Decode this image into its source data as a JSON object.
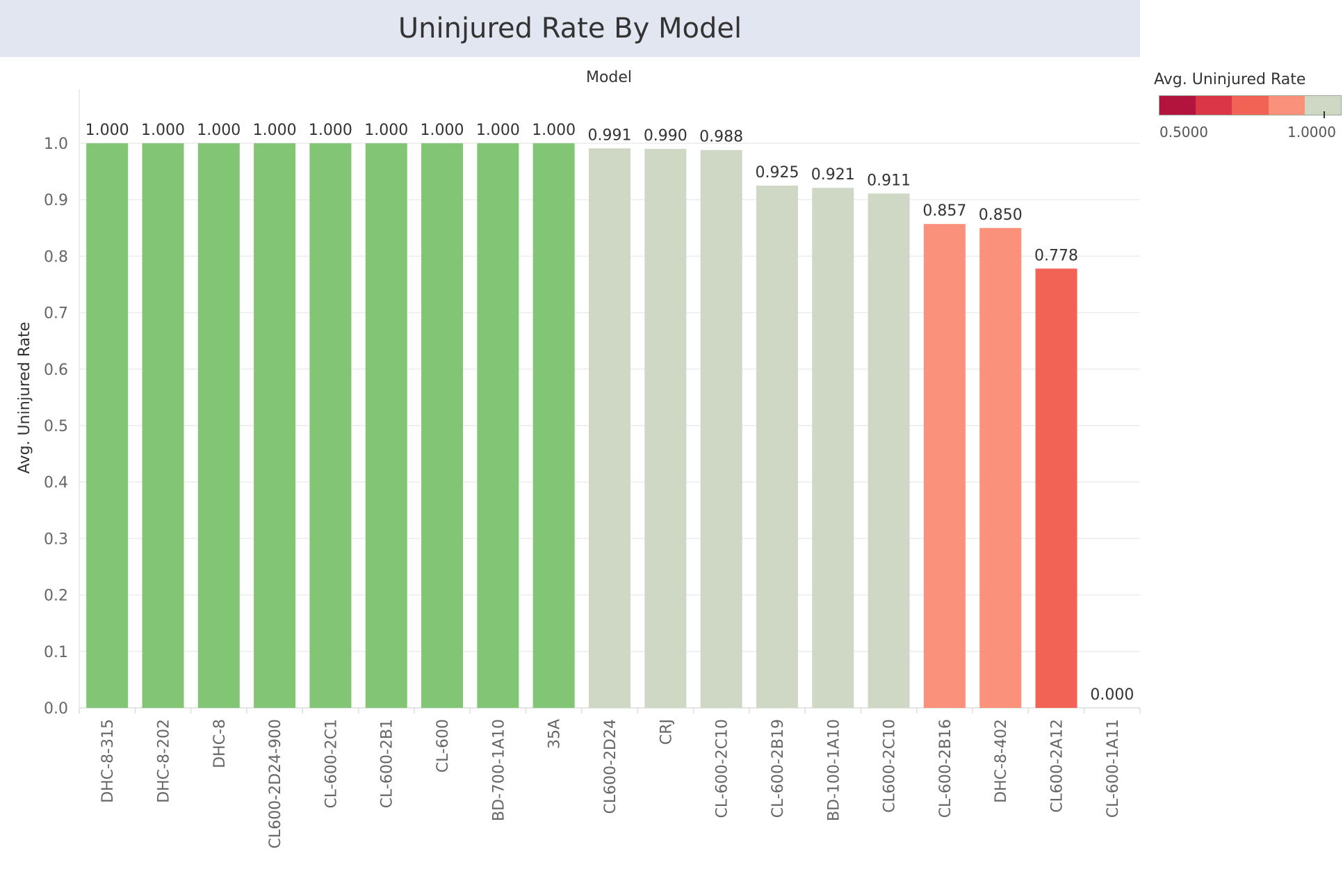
{
  "chart_data": {
    "type": "bar",
    "title": "Uninjured Rate By Model",
    "column_header": "Model",
    "ylabel": "Avg. Uninjured Rate",
    "ylim": [
      0,
      1.0
    ],
    "yticks": [
      "0.0",
      "0.1",
      "0.2",
      "0.3",
      "0.4",
      "0.5",
      "0.6",
      "0.7",
      "0.8",
      "0.9",
      "1.0"
    ],
    "categories": [
      "DHC-8-315",
      "DHC-8-202",
      "DHC-8",
      "CL600-2D24-900",
      "CL-600-2C1",
      "CL-600-2B1",
      "CL-600",
      "BD-700-1A10",
      "35A",
      "CL600-2D24",
      "CRJ",
      "CL-600-2C10",
      "CL-600-2B19",
      "BD-100-1A10",
      "CL600-2C10",
      "CL-600-2B16",
      "DHC-8-402",
      "CL600-2A12",
      "CL-600-1A11"
    ],
    "values": [
      1.0,
      1.0,
      1.0,
      1.0,
      1.0,
      1.0,
      1.0,
      1.0,
      1.0,
      0.991,
      0.99,
      0.988,
      0.925,
      0.921,
      0.911,
      0.857,
      0.85,
      0.778,
      0.0
    ],
    "value_labels": [
      "1.000",
      "1.000",
      "1.000",
      "1.000",
      "1.000",
      "1.000",
      "1.000",
      "1.000",
      "1.000",
      "0.991",
      "0.990",
      "0.988",
      "0.925",
      "0.921",
      "0.911",
      "0.857",
      "0.850",
      "0.778",
      "0.000"
    ],
    "bar_colors": [
      "#82c574",
      "#82c574",
      "#82c574",
      "#82c574",
      "#82c574",
      "#82c574",
      "#82c574",
      "#82c574",
      "#82c574",
      "#cfd8c5",
      "#cfd8c5",
      "#cfd8c5",
      "#cfd8c5",
      "#cfd8c5",
      "#cfd8c5",
      "#fa917b",
      "#fa917b",
      "#f26355",
      "#f26355"
    ],
    "grid": true,
    "legend": {
      "title": "Avg. Uninjured Rate",
      "placement": "top-right",
      "min_label": "0.5000",
      "max_label": "1.0000",
      "colors": [
        "#b3143d",
        "#db3548",
        "#f26355",
        "#fa917b",
        "#cfd8c5"
      ]
    }
  }
}
